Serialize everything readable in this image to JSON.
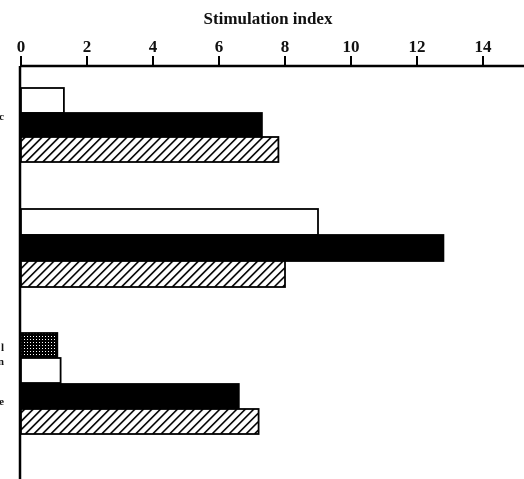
{
  "chart_data": {
    "type": "bar",
    "orientation": "horizontal",
    "xlabel": "Stimulation index",
    "xlim": [
      0,
      15
    ],
    "xticks": [
      0,
      2,
      4,
      6,
      8,
      10,
      12,
      14
    ],
    "grid": false,
    "groups": [
      {
        "label_fragments": [
          "c"
        ],
        "bars": [
          {
            "pattern": "white",
            "value": 1.3
          },
          {
            "pattern": "black",
            "value": 7.3
          },
          {
            "pattern": "hatched",
            "value": 7.8
          }
        ]
      },
      {
        "label_fragments": [],
        "bars": [
          {
            "pattern": "white",
            "value": 9.0
          },
          {
            "pattern": "black",
            "value": 12.8
          },
          {
            "pattern": "hatched",
            "value": 8.0
          }
        ]
      },
      {
        "label_fragments": [
          "l",
          "n",
          "e"
        ],
        "bars": [
          {
            "pattern": "dotted",
            "value": 1.1
          },
          {
            "pattern": "white",
            "value": 1.2
          },
          {
            "pattern": "black",
            "value": 6.6
          },
          {
            "pattern": "hatched",
            "value": 7.2
          }
        ]
      }
    ]
  }
}
